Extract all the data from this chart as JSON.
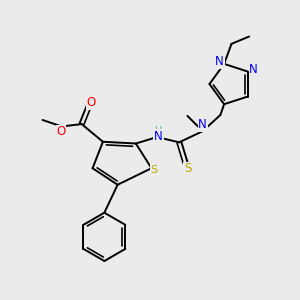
{
  "background_color": "#ebebeb",
  "bond_color": "#000000",
  "atom_colors": {
    "O": "#ff0000",
    "N": "#0000ee",
    "S_thio": "#bbaa00",
    "S_ring": "#bbaa00",
    "H": "#55aaaa",
    "C": "#000000"
  },
  "figsize": [
    3.0,
    3.0
  ],
  "dpi": 100
}
